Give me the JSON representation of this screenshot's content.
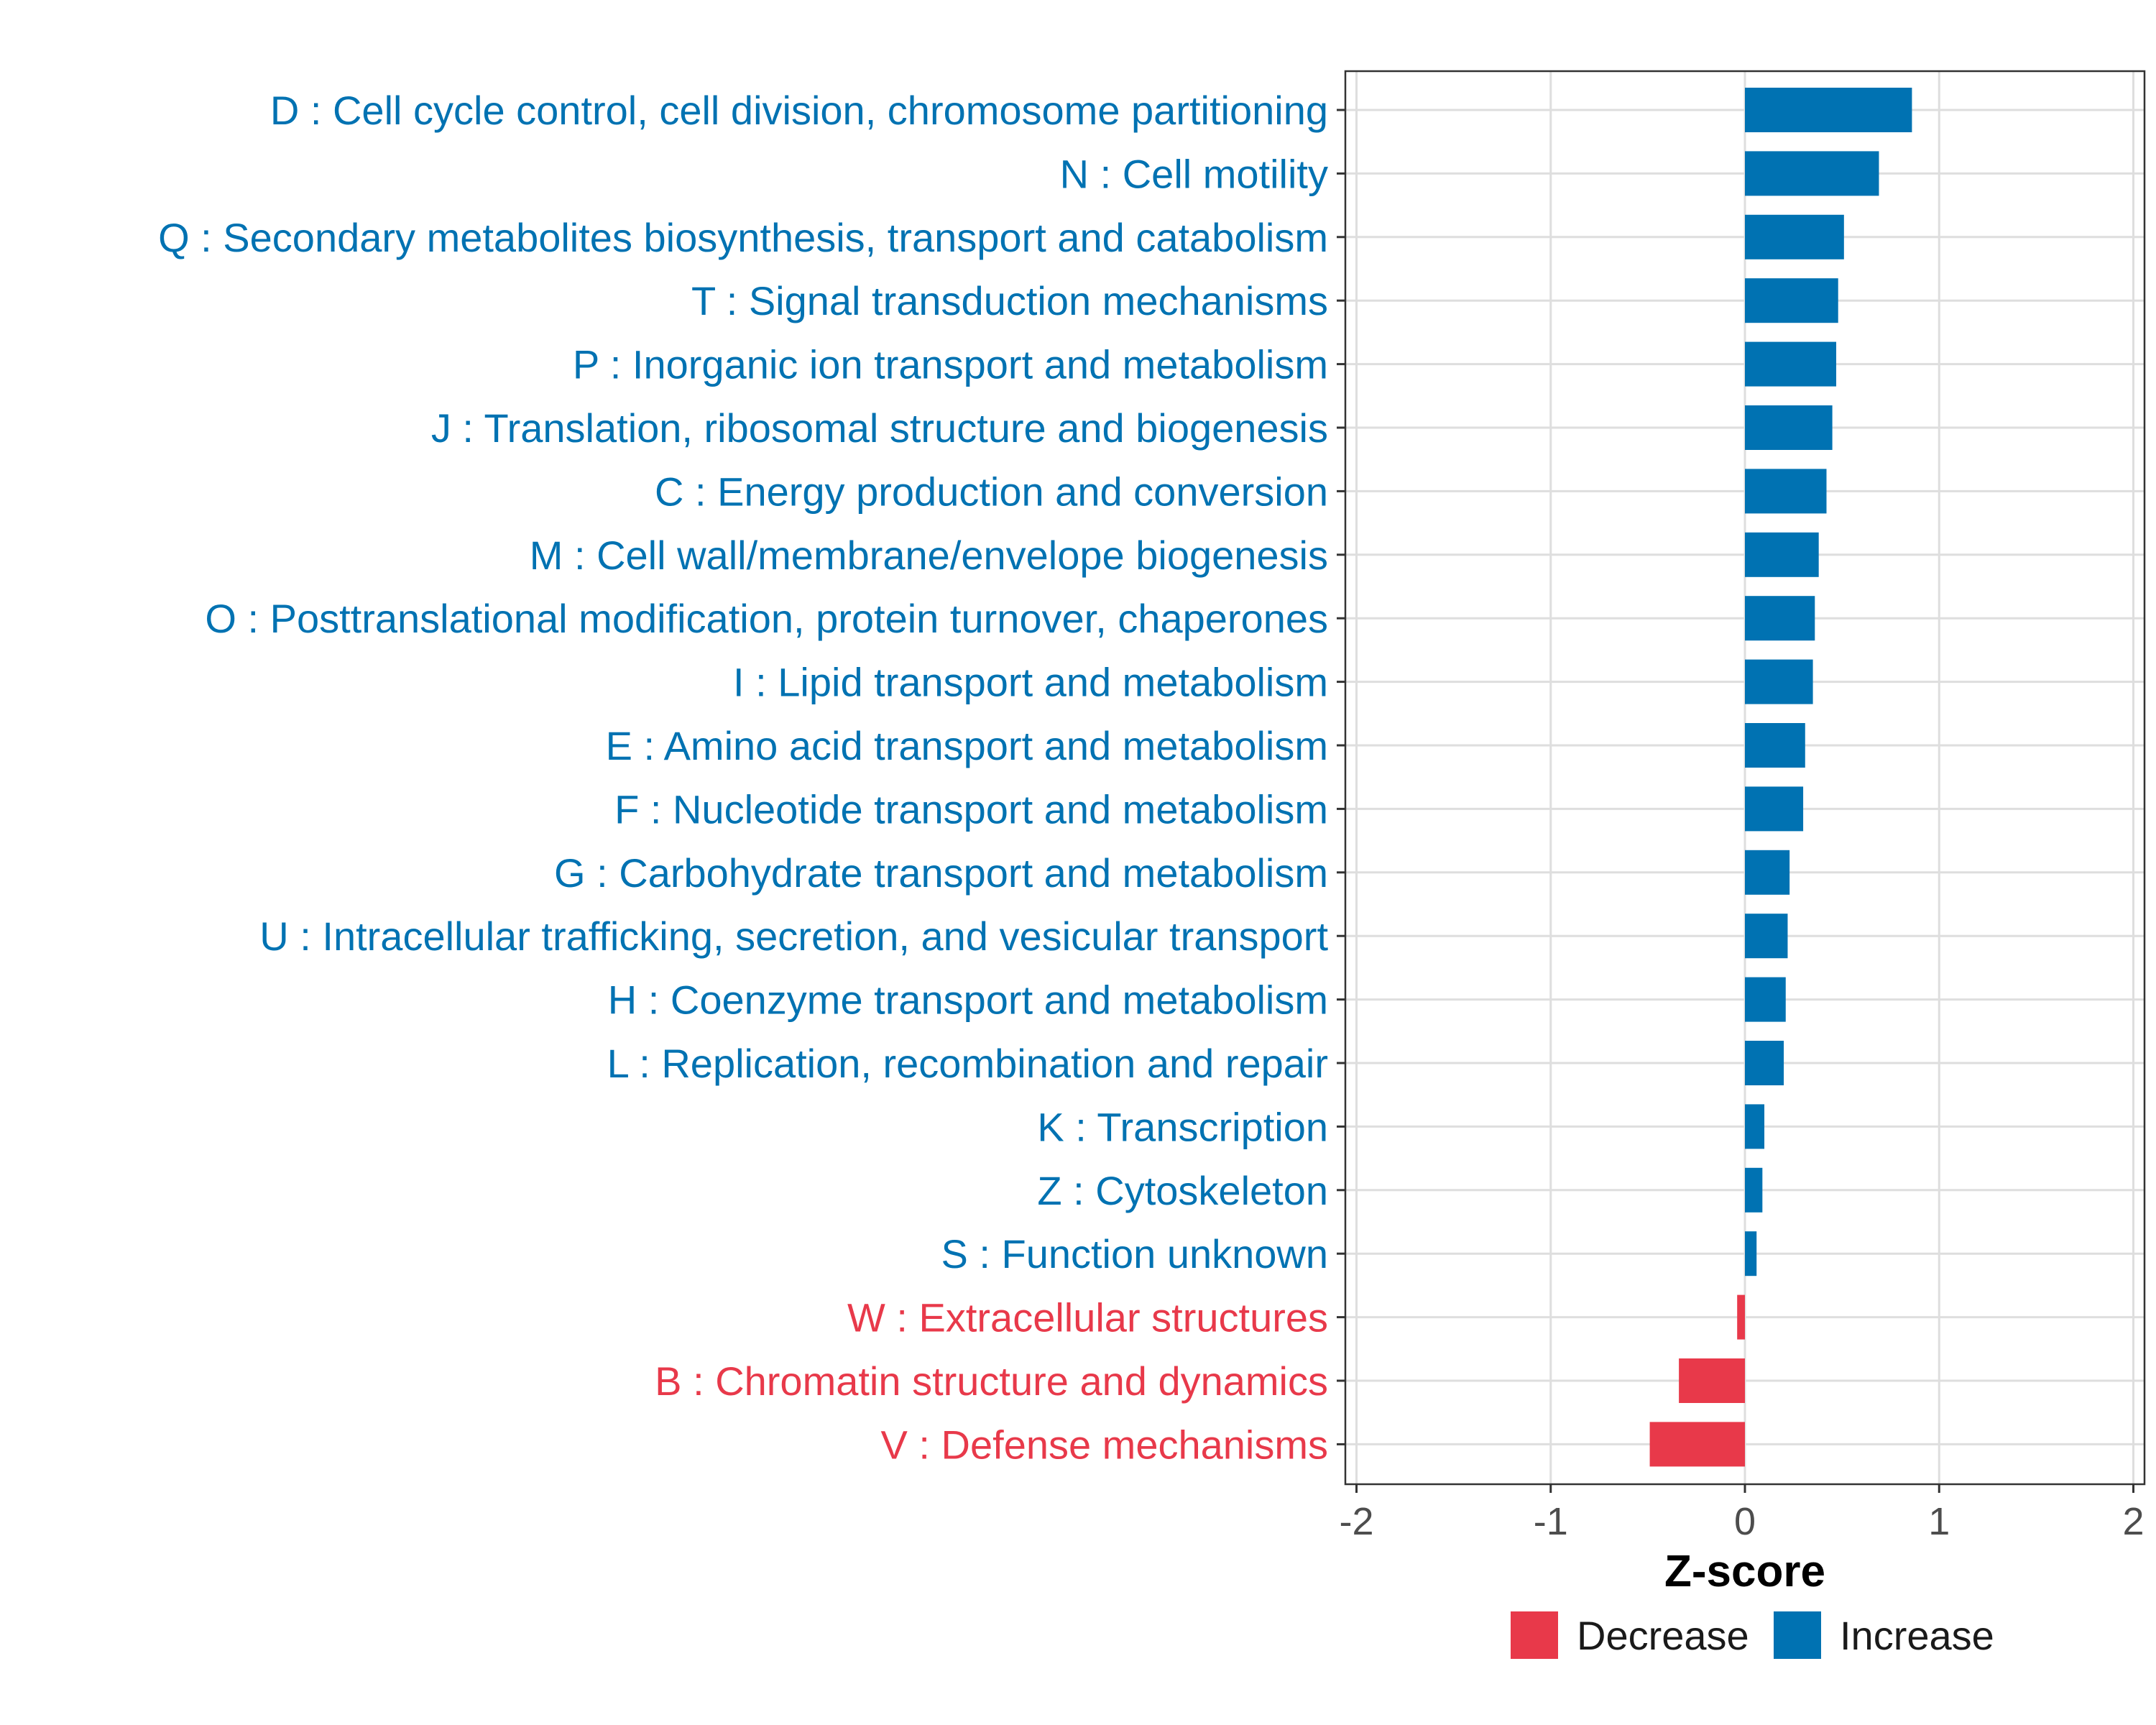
{
  "chart_data": {
    "type": "bar",
    "orientation": "horizontal",
    "title": "",
    "xlabel": "Z-score",
    "ylabel": "",
    "xlim": [
      -2,
      2
    ],
    "xticks": [
      -2,
      -1,
      0,
      1,
      2
    ],
    "xtick_labels": [
      "-2",
      "-1",
      "0",
      "1",
      "2"
    ],
    "grid": true,
    "legend_position": "bottom",
    "colors": {
      "Decrease": "#E8394A",
      "Increase": "#0072B2"
    },
    "legend": [
      {
        "label": "Decrease"
      },
      {
        "label": "Increase"
      }
    ],
    "bars": [
      {
        "label": "D : Cell cycle control, cell division, chromosome partitioning",
        "value": 0.86,
        "direction": "Increase"
      },
      {
        "label": "N : Cell motility",
        "value": 0.69,
        "direction": "Increase"
      },
      {
        "label": "Q : Secondary metabolites biosynthesis, transport and catabolism",
        "value": 0.51,
        "direction": "Increase"
      },
      {
        "label": "T : Signal transduction mechanisms",
        "value": 0.48,
        "direction": "Increase"
      },
      {
        "label": "P : Inorganic ion transport and metabolism",
        "value": 0.47,
        "direction": "Increase"
      },
      {
        "label": "J : Translation, ribosomal structure and biogenesis",
        "value": 0.45,
        "direction": "Increase"
      },
      {
        "label": "C : Energy production and conversion",
        "value": 0.42,
        "direction": "Increase"
      },
      {
        "label": "M : Cell wall/membrane/envelope biogenesis",
        "value": 0.38,
        "direction": "Increase"
      },
      {
        "label": "O : Posttranslational modification, protein turnover, chaperones",
        "value": 0.36,
        "direction": "Increase"
      },
      {
        "label": "I : Lipid transport and metabolism",
        "value": 0.35,
        "direction": "Increase"
      },
      {
        "label": "E : Amino acid transport and metabolism",
        "value": 0.31,
        "direction": "Increase"
      },
      {
        "label": "F : Nucleotide transport and metabolism",
        "value": 0.3,
        "direction": "Increase"
      },
      {
        "label": "G : Carbohydrate transport and metabolism",
        "value": 0.23,
        "direction": "Increase"
      },
      {
        "label": "U : Intracellular trafficking, secretion, and vesicular transport",
        "value": 0.22,
        "direction": "Increase"
      },
      {
        "label": "H : Coenzyme transport and metabolism",
        "value": 0.21,
        "direction": "Increase"
      },
      {
        "label": "L : Replication, recombination and repair",
        "value": 0.2,
        "direction": "Increase"
      },
      {
        "label": "K : Transcription",
        "value": 0.1,
        "direction": "Increase"
      },
      {
        "label": "Z : Cytoskeleton",
        "value": 0.09,
        "direction": "Increase"
      },
      {
        "label": "S : Function unknown",
        "value": 0.06,
        "direction": "Increase"
      },
      {
        "label": "W : Extracellular structures",
        "value": -0.04,
        "direction": "Decrease"
      },
      {
        "label": "B : Chromatin structure and dynamics",
        "value": -0.34,
        "direction": "Decrease"
      },
      {
        "label": "V : Defense mechanisms",
        "value": -0.49,
        "direction": "Decrease"
      }
    ]
  }
}
